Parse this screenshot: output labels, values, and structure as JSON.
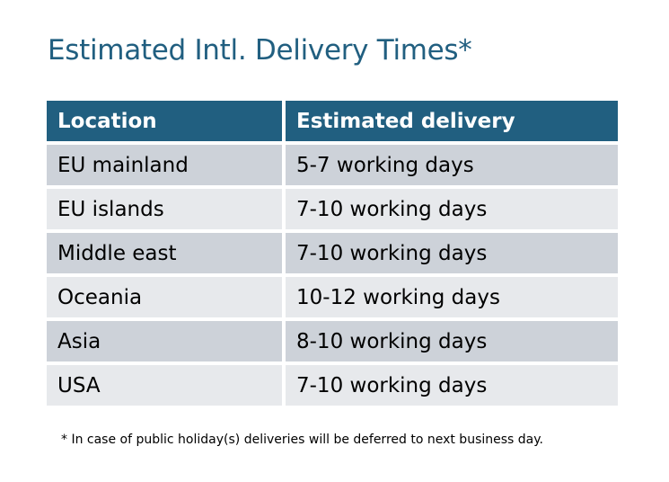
{
  "title": "Estimated Intl. Delivery Times*",
  "table": {
    "headers": [
      "Location",
      "Estimated delivery"
    ],
    "rows": [
      [
        "EU mainland",
        "5-7 working days"
      ],
      [
        "EU islands",
        "7-10 working days"
      ],
      [
        "Middle east",
        "7-10 working days"
      ],
      [
        "Oceania",
        "10-12 working days"
      ],
      [
        "Asia",
        "8-10 working days"
      ],
      [
        "USA",
        "7-10 working days"
      ]
    ]
  },
  "footnote": "* In case of public holiday(s) deliveries will be deferred to next business day.",
  "colors": {
    "accent": "#215f80",
    "row_dark": "#cdd2d9",
    "row_light": "#e7e9ec"
  }
}
